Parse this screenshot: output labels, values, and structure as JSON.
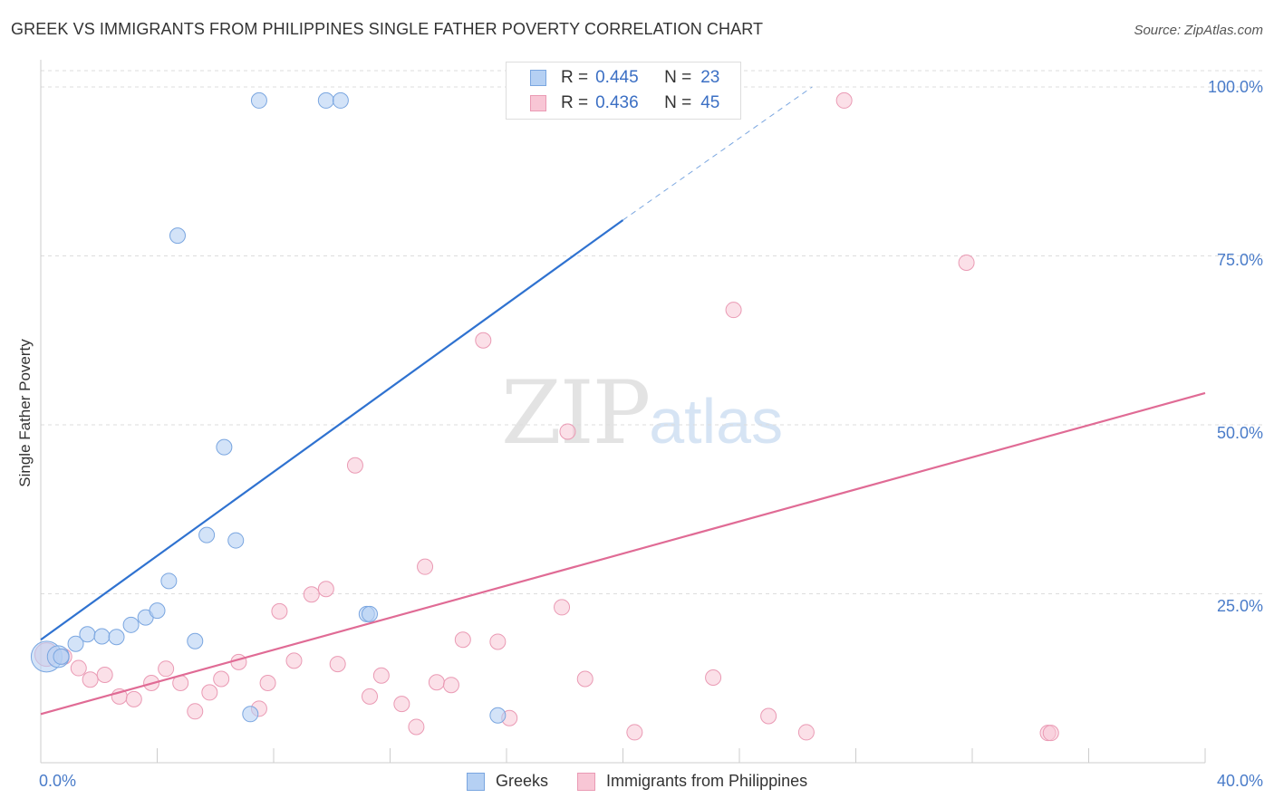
{
  "title": "GREEK VS IMMIGRANTS FROM PHILIPPINES SINGLE FATHER POVERTY CORRELATION CHART",
  "source": "Source: ZipAtlas.com",
  "watermark": {
    "zip": "ZIP",
    "atlas": "atlas"
  },
  "colors": {
    "greeks_fill": "#b5d0f3",
    "greeks_stroke": "#7aa6e0",
    "greeks_line": "#2f72d0",
    "phil_fill": "#f8c6d5",
    "phil_stroke": "#ea9ab4",
    "phil_line": "#e06b95",
    "grid": "#dddddd",
    "tick_label": "#4a7cc9"
  },
  "stats": [
    {
      "r_label": "R =",
      "r_value": "0.445",
      "n_label": "N =",
      "n_value": "23"
    },
    {
      "r_label": "R =",
      "r_value": "0.436",
      "n_label": "N =",
      "n_value": "45"
    }
  ],
  "chart_data": {
    "type": "scatter",
    "title": "GREEK VS IMMIGRANTS FROM PHILIPPINES SINGLE FATHER POVERTY CORRELATION CHART",
    "xlabel": "",
    "ylabel": "Single Father Poverty",
    "xlim": [
      0,
      40
    ],
    "ylim": [
      0,
      100
    ],
    "x_tick_labels": [
      "0.0%",
      "40.0%"
    ],
    "y_tick_labels": [
      "100.0%",
      "75.0%",
      "50.0%",
      "25.0%"
    ],
    "y_ticks": [
      100,
      75,
      50,
      25
    ],
    "grid": true,
    "legend_position": "bottom-center",
    "series": [
      {
        "name": "Greeks",
        "points": [
          [
            0.2,
            15.7
          ],
          [
            0.6,
            15.7
          ],
          [
            0.7,
            15.7
          ],
          [
            1.2,
            17.6
          ],
          [
            1.6,
            19.0
          ],
          [
            2.1,
            18.7
          ],
          [
            2.6,
            18.6
          ],
          [
            3.1,
            20.4
          ],
          [
            3.6,
            21.5
          ],
          [
            4.0,
            22.5
          ],
          [
            4.4,
            26.9
          ],
          [
            4.7,
            78.0
          ],
          [
            5.3,
            18.0
          ],
          [
            5.7,
            33.7
          ],
          [
            6.3,
            46.7
          ],
          [
            6.7,
            32.9
          ],
          [
            7.2,
            7.2
          ],
          [
            7.5,
            98.0
          ],
          [
            9.8,
            98.0
          ],
          [
            10.3,
            98.0
          ],
          [
            11.2,
            22.0
          ],
          [
            11.3,
            22.0
          ],
          [
            15.7,
            7.0
          ]
        ],
        "sizes": [
          3,
          2,
          1,
          1,
          1,
          1,
          1,
          1,
          1,
          1,
          1,
          1,
          1,
          1,
          1,
          1,
          1,
          1,
          1,
          1,
          1,
          1,
          1
        ],
        "trendline": {
          "x": [
            0,
            20
          ],
          "y": [
            18.2,
            80.3
          ],
          "dashed_extension": {
            "x": [
              20,
              26.5
            ],
            "y": [
              80.3,
              100
            ]
          }
        }
      },
      {
        "name": "Immigrants from Philippines",
        "points": [
          [
            0.2,
            16.0
          ],
          [
            0.8,
            15.7
          ],
          [
            1.3,
            14.0
          ],
          [
            1.7,
            12.3
          ],
          [
            2.2,
            13.0
          ],
          [
            2.7,
            9.8
          ],
          [
            3.2,
            9.4
          ],
          [
            3.8,
            11.8
          ],
          [
            4.3,
            13.9
          ],
          [
            4.8,
            11.8
          ],
          [
            5.3,
            7.6
          ],
          [
            5.8,
            10.4
          ],
          [
            6.2,
            12.4
          ],
          [
            6.8,
            14.9
          ],
          [
            7.5,
            8.0
          ],
          [
            7.8,
            11.8
          ],
          [
            8.2,
            22.4
          ],
          [
            8.7,
            15.1
          ],
          [
            9.3,
            24.9
          ],
          [
            9.8,
            25.7
          ],
          [
            10.2,
            14.6
          ],
          [
            10.8,
            44.0
          ],
          [
            11.3,
            9.8
          ],
          [
            11.7,
            12.9
          ],
          [
            12.4,
            8.7
          ],
          [
            12.9,
            5.3
          ],
          [
            13.2,
            29.0
          ],
          [
            13.6,
            11.9
          ],
          [
            14.1,
            11.5
          ],
          [
            14.5,
            18.2
          ],
          [
            15.2,
            62.5
          ],
          [
            15.7,
            17.9
          ],
          [
            16.1,
            6.6
          ],
          [
            17.9,
            23.0
          ],
          [
            18.1,
            49.0
          ],
          [
            18.7,
            12.4
          ],
          [
            20.4,
            4.5
          ],
          [
            23.1,
            12.6
          ],
          [
            23.8,
            67.0
          ],
          [
            25.0,
            6.9
          ],
          [
            26.3,
            4.5
          ],
          [
            27.6,
            98.0
          ],
          [
            31.8,
            74.0
          ],
          [
            34.6,
            4.4
          ],
          [
            34.7,
            4.4
          ]
        ],
        "sizes": [
          2,
          1,
          1,
          1,
          1,
          1,
          1,
          1,
          1,
          1,
          1,
          1,
          1,
          1,
          1,
          1,
          1,
          1,
          1,
          1,
          1,
          1,
          1,
          1,
          1,
          1,
          1,
          1,
          1,
          1,
          1,
          1,
          1,
          1,
          1,
          1,
          1,
          1,
          1,
          1,
          1,
          1,
          1,
          1,
          1
        ],
        "trendline": {
          "x": [
            0,
            40
          ],
          "y": [
            7.2,
            54.7
          ]
        }
      }
    ]
  },
  "legend": {
    "greeks_label": "Greeks",
    "phil_label": "Immigrants from Philippines"
  }
}
